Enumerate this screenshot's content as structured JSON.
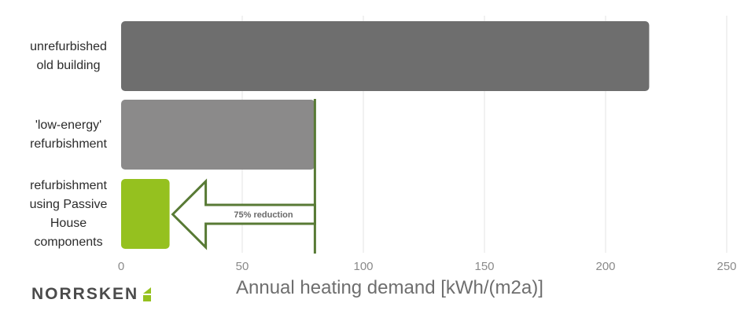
{
  "chart_data": {
    "type": "bar",
    "orientation": "horizontal",
    "categories": [
      "unrefurbished old building",
      "'low-energy' refurbishment",
      "refurbishment using Passive House components"
    ],
    "category_lines": [
      [
        "unrefurbished",
        "old building"
      ],
      [
        "'low-energy'",
        "refurbishment"
      ],
      [
        "refurbishment",
        "using Passive",
        "House",
        "components"
      ]
    ],
    "values": [
      218,
      80,
      20
    ],
    "colors": [
      "#6e6e6e",
      "#8b8a8a",
      "#95c11f"
    ],
    "xlabel": "Annual heating demand [kWh/(m2a)]",
    "xlim": [
      0,
      250
    ],
    "xticks": [
      0,
      50,
      100,
      150,
      200,
      250
    ],
    "grid": "vertical",
    "annotation": {
      "text": "75% reduction",
      "reference_value": 80,
      "target_value": 20,
      "color": "#587a35"
    }
  },
  "brand": {
    "name": "NORRSKEN",
    "accent_color": "#95c11f"
  }
}
